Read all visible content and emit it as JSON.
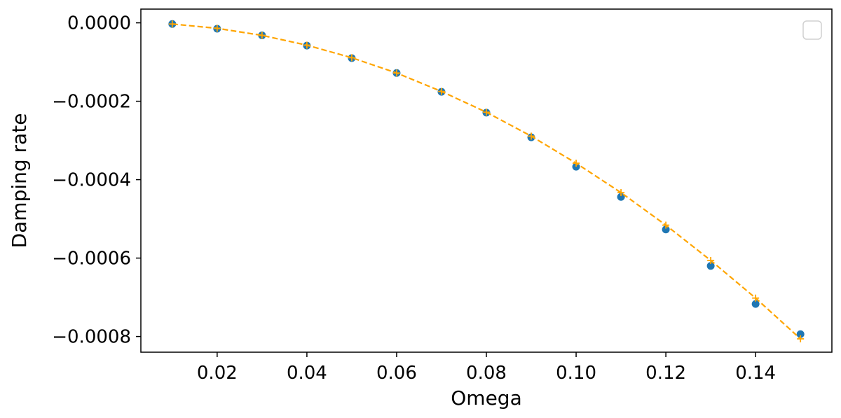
{
  "chart_data": {
    "type": "scatter",
    "title": "",
    "xlabel": "Omega",
    "ylabel": "Damping rate",
    "xlim": [
      0.003,
      0.157
    ],
    "ylim": [
      -0.00084,
      3.5e-05
    ],
    "grid": false,
    "legend": {
      "placement": "top-right",
      "entries": []
    },
    "x_ticks": [
      {
        "value": 0.02,
        "label": "0.02"
      },
      {
        "value": 0.04,
        "label": "0.04"
      },
      {
        "value": 0.06,
        "label": "0.06"
      },
      {
        "value": 0.08,
        "label": "0.08"
      },
      {
        "value": 0.1,
        "label": "0.10"
      },
      {
        "value": 0.12,
        "label": "0.12"
      },
      {
        "value": 0.14,
        "label": "0.14"
      }
    ],
    "y_ticks": [
      {
        "value": 0.0,
        "label": "0.0000"
      },
      {
        "value": -0.0002,
        "label": "−0.0002"
      },
      {
        "value": -0.0004,
        "label": "−0.0004"
      },
      {
        "value": -0.0006,
        "label": "−0.0006"
      },
      {
        "value": -0.0008,
        "label": "−0.0008"
      }
    ],
    "series": [
      {
        "style": "points",
        "marker": "circle",
        "color": "#1f77b4",
        "x": [
          0.01,
          0.02,
          0.03,
          0.04,
          0.05,
          0.06,
          0.07,
          0.08,
          0.09,
          0.1,
          0.11,
          0.12,
          0.13,
          0.14,
          0.15
        ],
        "y": [
          -3e-06,
          -1.5e-05,
          -3.2e-05,
          -5.8e-05,
          -9e-05,
          -0.000128,
          -0.000176,
          -0.000229,
          -0.000292,
          -0.000367,
          -0.000444,
          -0.000527,
          -0.00062,
          -0.000717,
          -0.000794
        ]
      },
      {
        "style": "dashed-line",
        "marker": "plus",
        "color": "#ffa500",
        "x": [
          0.01,
          0.02,
          0.03,
          0.04,
          0.05,
          0.06,
          0.07,
          0.08,
          0.09,
          0.1,
          0.11,
          0.12,
          0.13,
          0.14,
          0.15
        ],
        "y": [
          -3e-06,
          -1.4e-05,
          -3.2e-05,
          -5.7e-05,
          -8.9e-05,
          -0.000128,
          -0.000175,
          -0.000228,
          -0.000289,
          -0.000358,
          -0.000433,
          -0.000516,
          -0.000606,
          -0.000702,
          -0.000806
        ]
      }
    ]
  }
}
